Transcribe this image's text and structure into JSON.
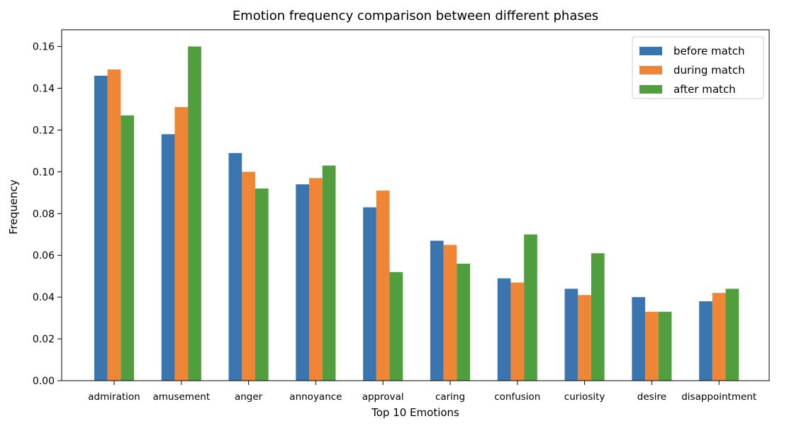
{
  "chart_data": {
    "type": "bar",
    "title": "Emotion frequency comparison between different phases",
    "xlabel": "Top 10 Emotions",
    "ylabel": "Frequency",
    "ylim": [
      0,
      0.168
    ],
    "yticks": [
      "0.00",
      "0.02",
      "0.04",
      "0.06",
      "0.08",
      "0.10",
      "0.12",
      "0.14",
      "0.16"
    ],
    "grid": false,
    "legend_position": "top-right",
    "categories": [
      "admiration",
      "amusement",
      "anger",
      "annoyance",
      "approval",
      "caring",
      "confusion",
      "curiosity",
      "desire",
      "disappointment"
    ],
    "series": [
      {
        "name": "before match",
        "color": "#3a75b0",
        "values": [
          0.146,
          0.118,
          0.109,
          0.094,
          0.083,
          0.067,
          0.049,
          0.044,
          0.04,
          0.038
        ]
      },
      {
        "name": "during match",
        "color": "#ef8636",
        "values": [
          0.149,
          0.131,
          0.1,
          0.097,
          0.091,
          0.065,
          0.047,
          0.041,
          0.033,
          0.042
        ]
      },
      {
        "name": "after match",
        "color": "#519e3e",
        "values": [
          0.127,
          0.16,
          0.092,
          0.103,
          0.052,
          0.056,
          0.07,
          0.061,
          0.033,
          0.044
        ]
      }
    ]
  }
}
